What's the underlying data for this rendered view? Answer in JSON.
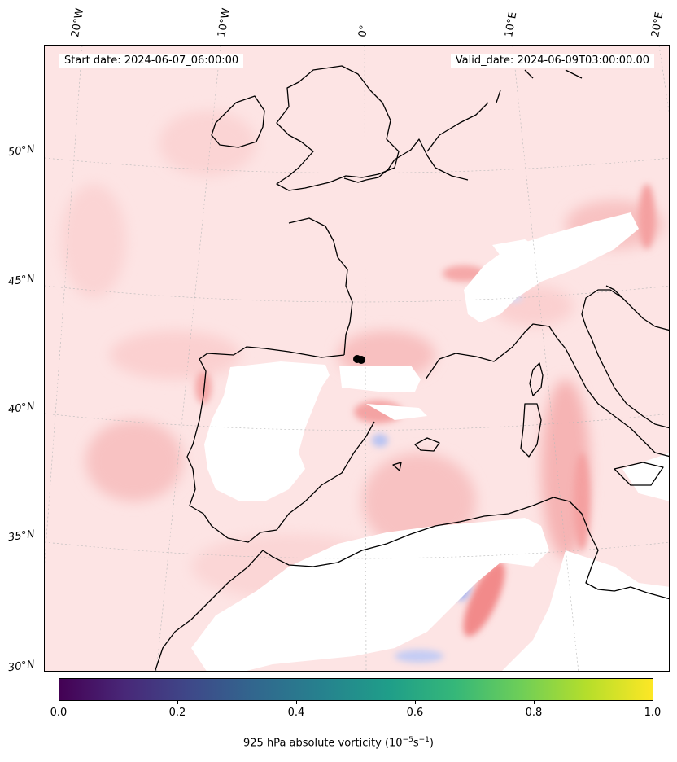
{
  "map": {
    "start_date": "Start date: 2024-06-07_06:00:00",
    "valid_date": "Valid_date: 2024-06-09T03:00:00.00",
    "longitude_labels": [
      "20°W",
      "10°W",
      "0°",
      "10°E",
      "20°E"
    ],
    "latitude_labels": [
      "50°N",
      "45°N",
      "40°N",
      "35°N",
      "30°N"
    ],
    "field_colors": {
      "positive": "#f4a7a7",
      "negative": "#a9b6f0",
      "coast": "#000000"
    },
    "marker": "storm-center-marker"
  },
  "colorbar": {
    "ticks": [
      "0.0",
      "0.2",
      "0.4",
      "0.6",
      "0.8",
      "1.0"
    ],
    "tick_values": [
      0.0,
      0.2,
      0.4,
      0.6,
      0.8,
      1.0
    ],
    "label_prefix": "925 hPa absolute vorticity (10",
    "label_exp1": "−5",
    "label_mid": "s",
    "label_exp2": "−1",
    "label_suffix": ")",
    "colormap": "viridis",
    "range": [
      0.0,
      1.0
    ]
  }
}
